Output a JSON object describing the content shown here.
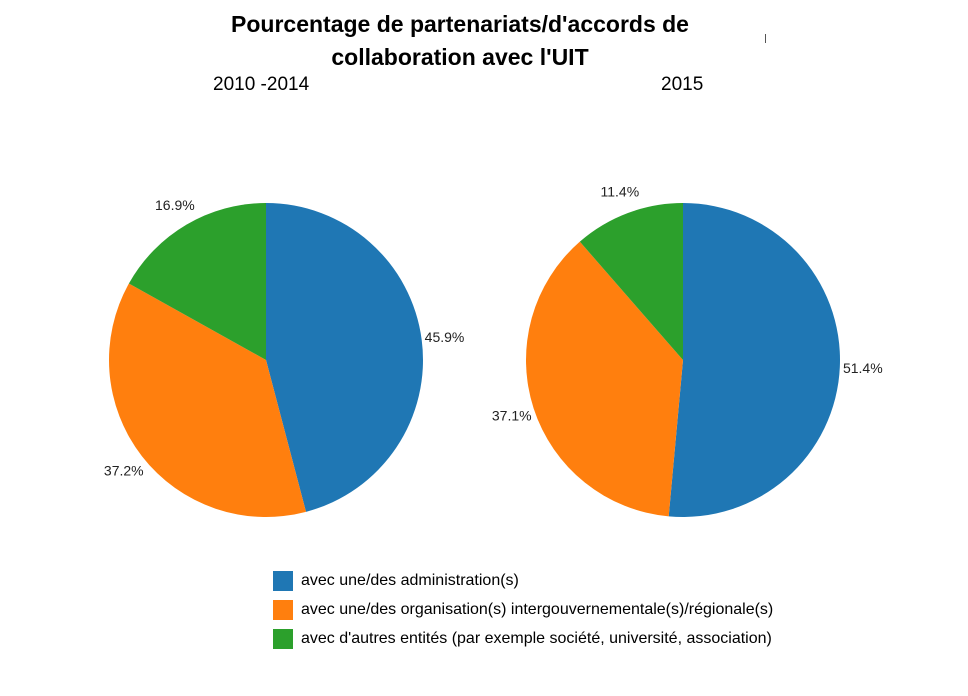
{
  "title_lines": [
    "Pourcentage de partenariats/d'accords de",
    "collaboration avec l'UIT"
  ],
  "colors": {
    "administration": "#1f77b4",
    "intergouvernementale": "#ff7f0e",
    "autres": "#2ca02c"
  },
  "legend": [
    {
      "label": "avec une/des administration(s)",
      "color": "#1f77b4"
    },
    {
      "label": "avec une/des organisation(s) intergouvernementale(s)/régionale(s)",
      "color": "#ff7f0e"
    },
    {
      "label": "avec d'autres entités (par exemple société, université, association)",
      "color": "#2ca02c"
    }
  ],
  "chart_data": [
    {
      "type": "pie",
      "title": "2010 -2014",
      "slices": [
        {
          "label": "avec une/des administration(s)",
          "value": 45.9,
          "display": "45.9%",
          "color": "#1f77b4"
        },
        {
          "label": "avec une/des organisation(s) intergouvernementale(s)/régionale(s)",
          "value": 37.2,
          "display": "37.2%",
          "color": "#ff7f0e"
        },
        {
          "label": "avec d'autres entités (par exemple société, université, association)",
          "value": 16.9,
          "display": "16.9%",
          "color": "#2ca02c"
        }
      ],
      "start": "12 o'clock",
      "direction": "clockwise"
    },
    {
      "type": "pie",
      "title": "2015",
      "slices": [
        {
          "label": "avec une/des administration(s)",
          "value": 51.4,
          "display": "51.4%",
          "color": "#1f77b4"
        },
        {
          "label": "avec une/des organisation(s) intergouvernementale(s)/régionale(s)",
          "value": 37.1,
          "display": "37.1%",
          "color": "#ff7f0e"
        },
        {
          "label": "avec d'autres entités (par exemple société, université, association)",
          "value": 11.4,
          "display": "11.4%",
          "color": "#2ca02c"
        }
      ],
      "start": "12 o'clock",
      "direction": "clockwise"
    }
  ]
}
